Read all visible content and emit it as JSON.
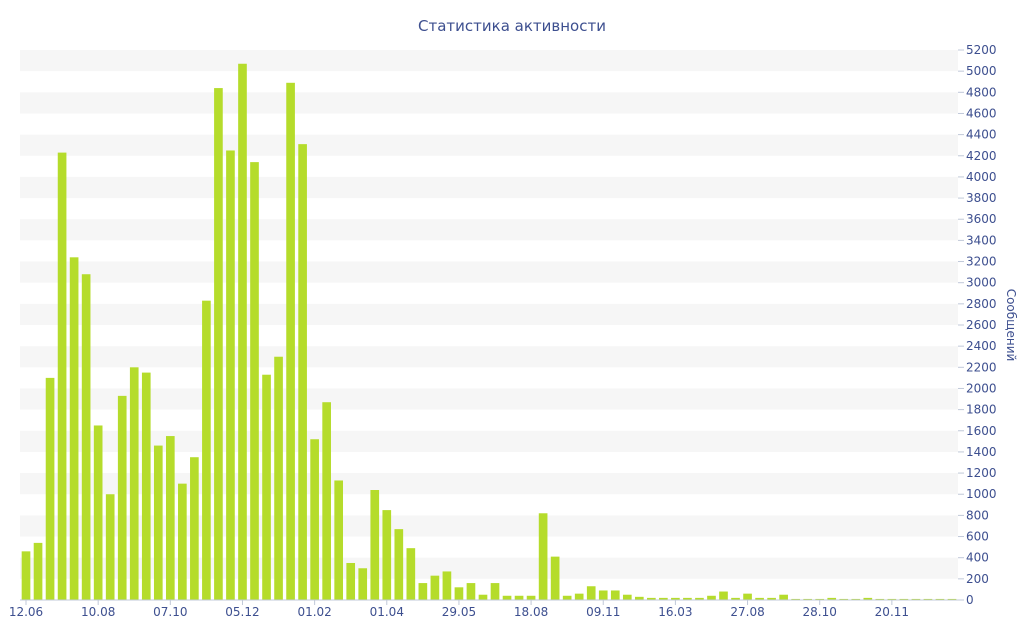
{
  "chart_data": {
    "type": "bar",
    "title": "Статистика активности",
    "xlabel": "",
    "ylabel": "Сообщений",
    "ylim": [
      0,
      5200
    ],
    "y_ticks": [
      0,
      200,
      400,
      600,
      800,
      1000,
      1200,
      1400,
      1600,
      1800,
      2000,
      2200,
      2400,
      2600,
      2800,
      3000,
      3200,
      3400,
      3600,
      3800,
      4000,
      4200,
      4400,
      4600,
      4800,
      5000,
      5200
    ],
    "y_axis_side": "right",
    "grid": "alternating horizontal bands",
    "legend": "none",
    "x_tick_labels": [
      {
        "label": "12.06",
        "index": 0
      },
      {
        "label": "10.08",
        "index": 6
      },
      {
        "label": "07.10",
        "index": 12
      },
      {
        "label": "05.12",
        "index": 18
      },
      {
        "label": "01.02",
        "index": 24
      },
      {
        "label": "01.04",
        "index": 30
      },
      {
        "label": "29.05",
        "index": 36
      },
      {
        "label": "18.08",
        "index": 42
      },
      {
        "label": "09.11",
        "index": 48
      },
      {
        "label": "16.03",
        "index": 54
      },
      {
        "label": "27.08",
        "index": 60
      },
      {
        "label": "28.10",
        "index": 66
      },
      {
        "label": "20.11",
        "index": 72
      }
    ],
    "values": [
      460,
      540,
      2100,
      4230,
      3240,
      3080,
      1650,
      1000,
      1930,
      2200,
      2150,
      1460,
      1550,
      1100,
      1350,
      2830,
      4840,
      4250,
      5070,
      4140,
      2130,
      2300,
      4890,
      4310,
      1520,
      1870,
      1130,
      350,
      300,
      1040,
      850,
      670,
      490,
      160,
      230,
      270,
      120,
      160,
      50,
      160,
      40,
      40,
      40,
      820,
      410,
      40,
      60,
      130,
      90,
      90,
      50,
      30,
      20,
      20,
      20,
      20,
      20,
      40,
      80,
      20,
      60,
      20,
      20,
      50,
      10,
      10,
      10,
      20,
      10,
      10,
      20,
      10,
      10,
      10,
      10,
      10,
      10,
      10
    ],
    "colors": {
      "bar": "#b5dc2b",
      "band": "#f6f6f6",
      "text": "#3d4f8f",
      "axis": "#c0c8d8"
    }
  }
}
